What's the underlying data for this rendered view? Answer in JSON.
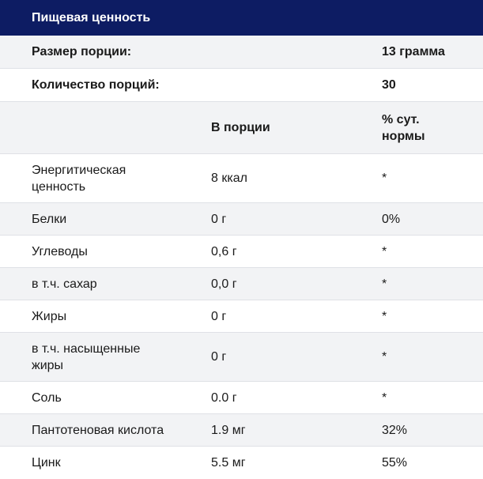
{
  "title": "Пищевая ценность",
  "summary": [
    {
      "label": "Размер порции:",
      "value": "13 грамма"
    },
    {
      "label": "Количество порций:",
      "value": "30"
    }
  ],
  "columns": {
    "name": "",
    "per_serving": "В порции",
    "daily": "% сут.\nнормы"
  },
  "rows": [
    {
      "name": "Энергитическая ценность",
      "per_serving": "8 ккал",
      "daily": "*"
    },
    {
      "name": "Белки",
      "per_serving": "0 г",
      "daily": "0%"
    },
    {
      "name": "Углеводы",
      "per_serving": "0,6 г",
      "daily": "*"
    },
    {
      "name": "в т.ч. сахар",
      "per_serving": "0,0 г",
      "daily": "*"
    },
    {
      "name": "Жиры",
      "per_serving": "0 г",
      "daily": "*"
    },
    {
      "name": "в т.ч. насыщенные жиры",
      "per_serving": "0 г",
      "daily": "*"
    },
    {
      "name": "Соль",
      "per_serving": "0.0 г",
      "daily": "*"
    },
    {
      "name": "Пантотеновая кислота",
      "per_serving": "1.9 мг",
      "daily": "32%"
    },
    {
      "name": "Цинк",
      "per_serving": "5.5 мг",
      "daily": "55%"
    }
  ]
}
